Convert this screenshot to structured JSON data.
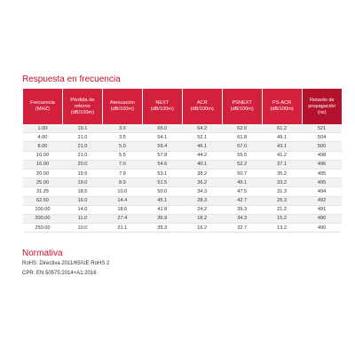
{
  "section_title": "Respuesta en frecuencia",
  "table": {
    "headers": [
      "Frecuencia (MHZ)",
      "Pérdida de retorno (dB/100m)",
      "Atenuación (dB/100m)",
      "NEXT (dB/100m)",
      "ACR (dB/100m)",
      "PSNEXT (dB/100m)",
      "PS-ACR (dB/100m)",
      "Retardo de propagación (ns)"
    ],
    "rows": [
      [
        "1.00",
        "19.1",
        "3.0",
        "65.0",
        "64.2",
        "62.0",
        "61.2",
        "521"
      ],
      [
        "4.00",
        "21.0",
        "3.5",
        "64.1",
        "52.1",
        "61.8",
        "49.1",
        "504"
      ],
      [
        "8.00",
        "21.0",
        "5.0",
        "59.4",
        "46.1",
        "57.0",
        "43.1",
        "500"
      ],
      [
        "10.00",
        "21.0",
        "5.5",
        "57.8",
        "44.2",
        "55.5",
        "41.2",
        "498"
      ],
      [
        "16.00",
        "20.0",
        "7.0",
        "54.6",
        "40.1",
        "52.2",
        "37.1",
        "496"
      ],
      [
        "20.00",
        "19.5",
        "7.9",
        "53.1",
        "38.2",
        "50.7",
        "35.2",
        "495"
      ],
      [
        "25.00",
        "19.0",
        "8.9",
        "51.5",
        "36.2",
        "49.1",
        "33.2",
        "495"
      ],
      [
        "31.25",
        "18.5",
        "10.0",
        "50.0",
        "34.3",
        "47.5",
        "31.3",
        "494"
      ],
      [
        "62.50",
        "16.0",
        "14.4",
        "45.1",
        "28.3",
        "42.7",
        "25.3",
        "492"
      ],
      [
        "100.00",
        "14.0",
        "18.6",
        "41.8",
        "24.2",
        "39.3",
        "21.2",
        "491"
      ],
      [
        "200.00",
        "11.0",
        "27.4",
        "36.9",
        "18.2",
        "34.3",
        "15.2",
        "490"
      ],
      [
        "250.00",
        "10.0",
        "31.1",
        "35.3",
        "16.2",
        "32.7",
        "13.2",
        "490"
      ]
    ]
  },
  "normativa": {
    "title": "Normativa",
    "lines": [
      "RoHS: Directiva 2011/65/UE RoHS 2",
      "CPR: EN 50575:2014+A1:2016"
    ]
  }
}
